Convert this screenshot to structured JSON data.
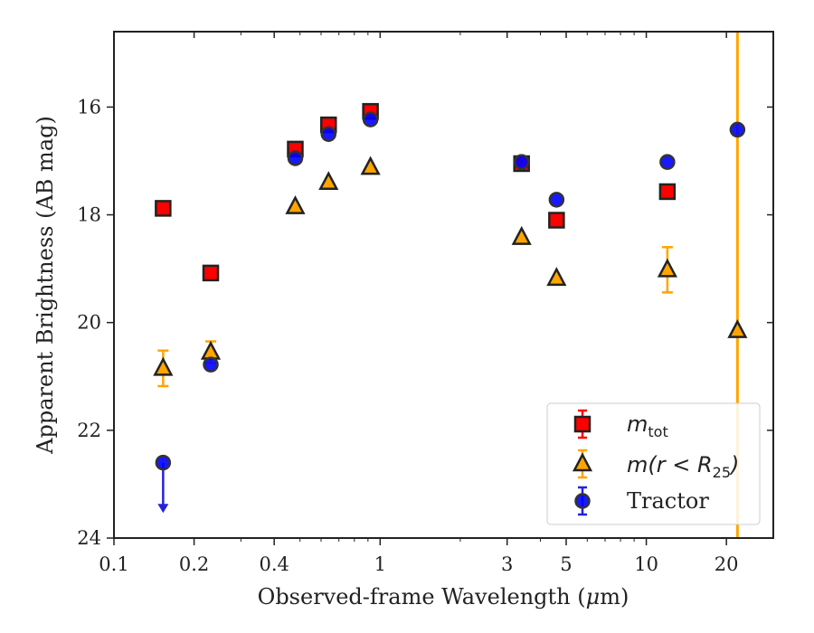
{
  "chart_data": {
    "type": "scatter",
    "xlabel_pre": "Observed-frame Wavelength (",
    "xlabel_math": "μ",
    "xlabel_post": "m)",
    "ylabel": "Apparent Brightness (AB mag)",
    "xscale": "log",
    "xlim": [
      0.1,
      30
    ],
    "ylim": [
      24,
      14.6
    ],
    "y_inverted": true,
    "x_ticks": [
      0.1,
      0.2,
      0.4,
      1,
      3,
      5,
      10,
      20
    ],
    "x_tick_labels": [
      "0.1",
      "0.2",
      "0.4",
      "1",
      "3",
      "5",
      "10",
      "20"
    ],
    "y_ticks": [
      16,
      18,
      20,
      22,
      24
    ],
    "y_tick_labels": [
      "16",
      "18",
      "20",
      "22",
      "24"
    ],
    "vertical_line": {
      "x": 22,
      "color": "#FFA500"
    },
    "legend_position": "lower-right",
    "series": [
      {
        "name": "m_tot",
        "legend_main": "m",
        "legend_sub": "tot",
        "marker": "square",
        "color": "#FF0000",
        "error_color": "#FF0000",
        "points": [
          {
            "x": 0.153,
            "y": 17.88
          },
          {
            "x": 0.231,
            "y": 19.08
          },
          {
            "x": 0.48,
            "y": 16.78
          },
          {
            "x": 0.64,
            "y": 16.33
          },
          {
            "x": 0.92,
            "y": 16.08
          },
          {
            "x": 3.4,
            "y": 17.05
          },
          {
            "x": 4.6,
            "y": 18.1
          },
          {
            "x": 12.0,
            "y": 17.57
          }
        ]
      },
      {
        "name": "m(r < R_25)",
        "legend_main": "m(r < R",
        "legend_sub": "25",
        "legend_close": ")",
        "marker": "triangle",
        "color": "#FFA500",
        "error_color": "#FFA500",
        "points": [
          {
            "x": 0.153,
            "y": 20.85,
            "yerr": 0.33
          },
          {
            "x": 0.231,
            "y": 20.55,
            "yerr": 0.2
          },
          {
            "x": 0.48,
            "y": 17.85
          },
          {
            "x": 0.64,
            "y": 17.4
          },
          {
            "x": 0.92,
            "y": 17.12
          },
          {
            "x": 3.4,
            "y": 18.42
          },
          {
            "x": 4.6,
            "y": 19.18
          },
          {
            "x": 12.0,
            "y": 19.02,
            "yerr": 0.42
          },
          {
            "x": 22.0,
            "y": 20.15
          }
        ]
      },
      {
        "name": "Tractor",
        "legend_main": "Tractor",
        "marker": "circle",
        "color": "#0000FF",
        "error_color": "#2222DD",
        "points": [
          {
            "x": 0.153,
            "y": 22.6,
            "upper_limit": true
          },
          {
            "x": 0.231,
            "y": 20.78
          },
          {
            "x": 0.48,
            "y": 16.95
          },
          {
            "x": 0.64,
            "y": 16.5
          },
          {
            "x": 0.92,
            "y": 16.23
          },
          {
            "x": 3.4,
            "y": 17.02
          },
          {
            "x": 4.6,
            "y": 17.72
          },
          {
            "x": 12.0,
            "y": 17.02
          },
          {
            "x": 22.0,
            "y": 16.42
          }
        ]
      }
    ]
  }
}
